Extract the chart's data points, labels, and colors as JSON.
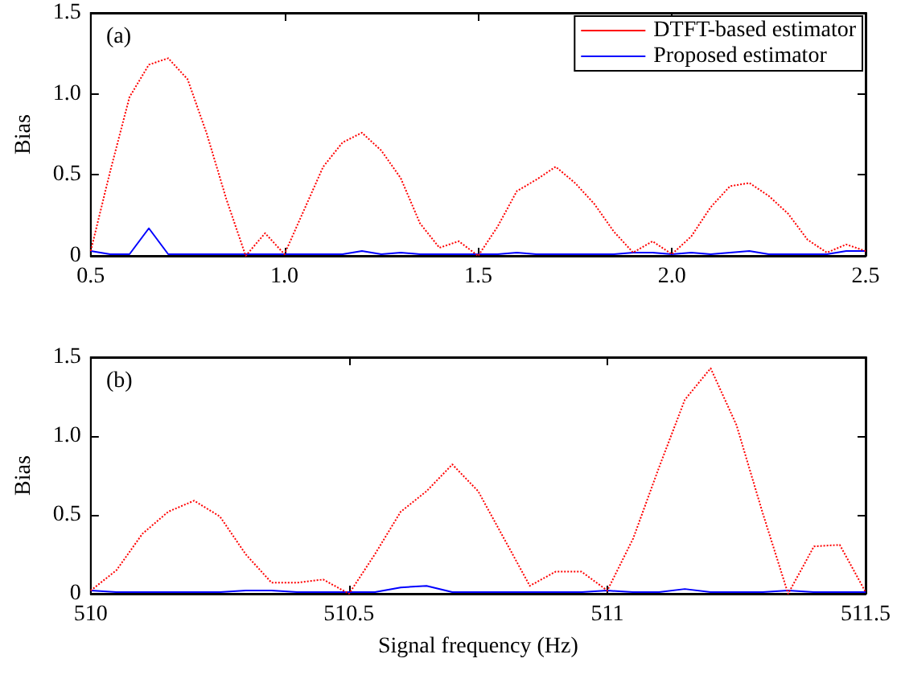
{
  "chart_data": [
    {
      "type": "line",
      "ylabel": "Bias",
      "annotations": [
        "(a)"
      ],
      "x": [
        0.5,
        0.55,
        0.6,
        0.65,
        0.7,
        0.75,
        0.8,
        0.85,
        0.9,
        0.95,
        1.0,
        1.05,
        1.1,
        1.15,
        1.2,
        1.25,
        1.3,
        1.35,
        1.4,
        1.45,
        1.5,
        1.55,
        1.6,
        1.65,
        1.7,
        1.75,
        1.8,
        1.85,
        1.9,
        1.95,
        2.0,
        2.05,
        2.1,
        2.15,
        2.2,
        2.25,
        2.3,
        2.35,
        2.4,
        2.45,
        2.5
      ],
      "series": [
        {
          "name": "DTFT-based estimator",
          "color": "#ff0000",
          "line_style": "dotted",
          "values": [
            0.03,
            0.52,
            0.98,
            1.18,
            1.22,
            1.09,
            0.75,
            0.35,
            0.0,
            0.14,
            0.01,
            0.28,
            0.55,
            0.7,
            0.76,
            0.65,
            0.48,
            0.2,
            0.05,
            0.09,
            0.0,
            0.18,
            0.4,
            0.47,
            0.55,
            0.45,
            0.32,
            0.15,
            0.02,
            0.09,
            0.01,
            0.12,
            0.3,
            0.43,
            0.45,
            0.37,
            0.26,
            0.1,
            0.02,
            0.07,
            0.03
          ]
        },
        {
          "name": "Proposed estimator",
          "color": "#0000ff",
          "line_style": "solid",
          "values": [
            0.03,
            0.01,
            0.01,
            0.17,
            0.01,
            0.01,
            0.01,
            0.01,
            0.01,
            0.01,
            0.01,
            0.01,
            0.01,
            0.01,
            0.03,
            0.01,
            0.02,
            0.01,
            0.01,
            0.01,
            0.01,
            0.01,
            0.02,
            0.01,
            0.01,
            0.01,
            0.01,
            0.01,
            0.02,
            0.02,
            0.01,
            0.02,
            0.01,
            0.02,
            0.03,
            0.01,
            0.01,
            0.01,
            0.01,
            0.03,
            0.03
          ]
        }
      ],
      "xlim": [
        0.5,
        2.5
      ],
      "xticks": [
        0.5,
        {
          "value": 1,
          "label": "1.0"
        },
        1.5,
        {
          "value": 2,
          "label": "2.0"
        },
        2.5
      ],
      "ylim": [
        0,
        1.5
      ],
      "yticks": [
        0,
        0.5,
        {
          "value": 1,
          "label": "1.0"
        },
        1.5
      ],
      "grid": false,
      "legend": "top right",
      "marker": "none"
    },
    {
      "type": "line",
      "xlabel": "Signal frequency (Hz)",
      "ylabel": "Bias",
      "annotations": [
        "(b)"
      ],
      "x": [
        510,
        510.05,
        510.1,
        510.15,
        510.2,
        510.25,
        510.3,
        510.35,
        510.4,
        510.45,
        510.5,
        510.55,
        510.6,
        510.65,
        510.7,
        510.75,
        510.8,
        510.85,
        510.9,
        510.95,
        511,
        511.05,
        511.1,
        511.15,
        511.2,
        511.25,
        511.3,
        511.35,
        511.4,
        511.45,
        511.5
      ],
      "series": [
        {
          "color": "#ff0000",
          "line_style": "dotted",
          "values": [
            0.02,
            0.15,
            0.38,
            0.52,
            0.59,
            0.49,
            0.25,
            0.07,
            0.07,
            0.09,
            0.0,
            0.25,
            0.52,
            0.65,
            0.82,
            0.65,
            0.35,
            0.05,
            0.14,
            0.14,
            0.02,
            0.35,
            0.8,
            1.23,
            1.43,
            1.07,
            0.52,
            0.0,
            0.3,
            0.31,
            0.01
          ]
        },
        {
          "color": "#0000ff",
          "line_style": "solid",
          "values": [
            0.02,
            0.01,
            0.01,
            0.01,
            0.01,
            0.01,
            0.02,
            0.02,
            0.01,
            0.01,
            0.01,
            0.01,
            0.04,
            0.05,
            0.01,
            0.01,
            0.01,
            0.01,
            0.01,
            0.01,
            0.02,
            0.01,
            0.01,
            0.03,
            0.01,
            0.01,
            0.01,
            0.02,
            0.01,
            0.01,
            0.01
          ]
        }
      ],
      "xlim": [
        510,
        511.5
      ],
      "xticks": [
        510,
        510.5,
        511,
        511.5
      ],
      "ylim": [
        0,
        1.5
      ],
      "yticks": [
        0,
        0.5,
        {
          "value": 1,
          "label": "1.0"
        },
        1.5
      ],
      "grid": false,
      "legend": false,
      "marker": "none"
    }
  ]
}
